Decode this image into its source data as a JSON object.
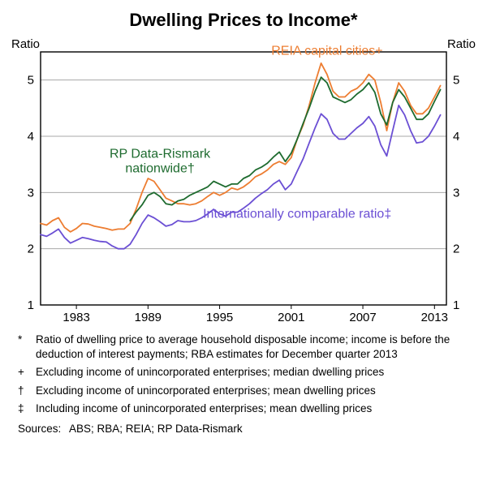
{
  "chart": {
    "type": "line",
    "title": "Dwelling Prices to Income*",
    "y_axis_label_left": "Ratio",
    "y_axis_label_right": "Ratio",
    "background_color": "#ffffff",
    "plot_bg": "#ffffff",
    "border_color": "#000000",
    "grid_color": "#a8a8a8",
    "title_fontsize": 22,
    "axis_fontsize": 15,
    "label_fontsize": 16,
    "xlim": [
      1980,
      2014
    ],
    "ylim": [
      1,
      5.5
    ],
    "yticks": [
      1,
      2,
      3,
      4,
      5
    ],
    "xticks": [
      1983,
      1989,
      1995,
      2001,
      2007,
      2013
    ],
    "line_width": 1.8,
    "series": [
      {
        "name": "REIA capital cities",
        "color": "#ed7d31",
        "label": "REIA capital cities",
        "label_symbol": "+",
        "label_x": 2004,
        "label_y": 5.45,
        "data": [
          [
            1980.0,
            2.45
          ],
          [
            1980.5,
            2.42
          ],
          [
            1981.0,
            2.5
          ],
          [
            1981.5,
            2.55
          ],
          [
            1982.0,
            2.38
          ],
          [
            1982.5,
            2.3
          ],
          [
            1983.0,
            2.36
          ],
          [
            1983.5,
            2.45
          ],
          [
            1984.0,
            2.44
          ],
          [
            1984.5,
            2.4
          ],
          [
            1985.0,
            2.38
          ],
          [
            1985.5,
            2.36
          ],
          [
            1986.0,
            2.33
          ],
          [
            1986.5,
            2.35
          ],
          [
            1987.0,
            2.35
          ],
          [
            1987.5,
            2.45
          ],
          [
            1988.0,
            2.7
          ],
          [
            1988.5,
            3.0
          ],
          [
            1989.0,
            3.25
          ],
          [
            1989.5,
            3.2
          ],
          [
            1990.0,
            3.05
          ],
          [
            1990.5,
            2.9
          ],
          [
            1991.0,
            2.85
          ],
          [
            1991.5,
            2.8
          ],
          [
            1992.0,
            2.8
          ],
          [
            1992.5,
            2.78
          ],
          [
            1993.0,
            2.8
          ],
          [
            1993.5,
            2.85
          ],
          [
            1994.0,
            2.93
          ],
          [
            1994.5,
            3.0
          ],
          [
            1995.0,
            2.95
          ],
          [
            1995.5,
            3.0
          ],
          [
            1996.0,
            3.08
          ],
          [
            1996.5,
            3.05
          ],
          [
            1997.0,
            3.1
          ],
          [
            1997.5,
            3.18
          ],
          [
            1998.0,
            3.28
          ],
          [
            1998.5,
            3.33
          ],
          [
            1999.0,
            3.4
          ],
          [
            1999.5,
            3.5
          ],
          [
            2000.0,
            3.55
          ],
          [
            2000.5,
            3.5
          ],
          [
            2001.0,
            3.62
          ],
          [
            2001.5,
            3.95
          ],
          [
            2002.0,
            4.2
          ],
          [
            2002.5,
            4.55
          ],
          [
            2003.0,
            4.95
          ],
          [
            2003.5,
            5.3
          ],
          [
            2004.0,
            5.1
          ],
          [
            2004.5,
            4.8
          ],
          [
            2005.0,
            4.7
          ],
          [
            2005.5,
            4.7
          ],
          [
            2006.0,
            4.8
          ],
          [
            2006.5,
            4.85
          ],
          [
            2007.0,
            4.95
          ],
          [
            2007.5,
            5.1
          ],
          [
            2008.0,
            5.0
          ],
          [
            2008.5,
            4.6
          ],
          [
            2009.0,
            4.1
          ],
          [
            2009.5,
            4.6
          ],
          [
            2010.0,
            4.95
          ],
          [
            2010.5,
            4.8
          ],
          [
            2011.0,
            4.55
          ],
          [
            2011.5,
            4.4
          ],
          [
            2012.0,
            4.4
          ],
          [
            2012.5,
            4.5
          ],
          [
            2013.0,
            4.7
          ],
          [
            2013.5,
            4.9
          ]
        ]
      },
      {
        "name": "RP Data-Rismark nationwide",
        "color": "#1e6b2f",
        "label": "RP Data-Rismark",
        "label_line2": "nationwide",
        "label_symbol": "†",
        "label_x": 1990,
        "label_y": 3.62,
        "data": [
          [
            1987.5,
            2.5
          ],
          [
            1988.0,
            2.65
          ],
          [
            1988.5,
            2.78
          ],
          [
            1989.0,
            2.95
          ],
          [
            1989.5,
            3.0
          ],
          [
            1990.0,
            2.93
          ],
          [
            1990.5,
            2.8
          ],
          [
            1991.0,
            2.78
          ],
          [
            1991.5,
            2.85
          ],
          [
            1992.0,
            2.88
          ],
          [
            1992.5,
            2.95
          ],
          [
            1993.0,
            3.0
          ],
          [
            1993.5,
            3.05
          ],
          [
            1994.0,
            3.1
          ],
          [
            1994.5,
            3.2
          ],
          [
            1995.0,
            3.15
          ],
          [
            1995.5,
            3.1
          ],
          [
            1996.0,
            3.15
          ],
          [
            1996.5,
            3.15
          ],
          [
            1997.0,
            3.25
          ],
          [
            1997.5,
            3.3
          ],
          [
            1998.0,
            3.4
          ],
          [
            1998.5,
            3.45
          ],
          [
            1999.0,
            3.52
          ],
          [
            1999.5,
            3.63
          ],
          [
            2000.0,
            3.72
          ],
          [
            2000.5,
            3.55
          ],
          [
            2001.0,
            3.7
          ],
          [
            2001.5,
            3.95
          ],
          [
            2002.0,
            4.23
          ],
          [
            2002.5,
            4.5
          ],
          [
            2003.0,
            4.8
          ],
          [
            2003.5,
            5.05
          ],
          [
            2004.0,
            4.95
          ],
          [
            2004.5,
            4.7
          ],
          [
            2005.0,
            4.65
          ],
          [
            2005.5,
            4.6
          ],
          [
            2006.0,
            4.65
          ],
          [
            2006.5,
            4.75
          ],
          [
            2007.0,
            4.83
          ],
          [
            2007.5,
            4.95
          ],
          [
            2008.0,
            4.78
          ],
          [
            2008.5,
            4.4
          ],
          [
            2009.0,
            4.2
          ],
          [
            2009.5,
            4.6
          ],
          [
            2010.0,
            4.83
          ],
          [
            2010.5,
            4.7
          ],
          [
            2011.0,
            4.5
          ],
          [
            2011.5,
            4.3
          ],
          [
            2012.0,
            4.3
          ],
          [
            2012.5,
            4.4
          ],
          [
            2013.0,
            4.62
          ],
          [
            2013.5,
            4.83
          ]
        ]
      },
      {
        "name": "Internationally comparable ratio",
        "color": "#6b4fd4",
        "label": "Internationally comparable ratio",
        "label_symbol": "‡",
        "label_x": 2001.5,
        "label_y": 2.55,
        "data": [
          [
            1980.0,
            2.25
          ],
          [
            1980.5,
            2.22
          ],
          [
            1981.0,
            2.28
          ],
          [
            1981.5,
            2.35
          ],
          [
            1982.0,
            2.2
          ],
          [
            1982.5,
            2.1
          ],
          [
            1983.0,
            2.15
          ],
          [
            1983.5,
            2.2
          ],
          [
            1984.0,
            2.18
          ],
          [
            1984.5,
            2.15
          ],
          [
            1985.0,
            2.13
          ],
          [
            1985.5,
            2.12
          ],
          [
            1986.0,
            2.05
          ],
          [
            1986.5,
            2.0
          ],
          [
            1987.0,
            2.0
          ],
          [
            1987.5,
            2.08
          ],
          [
            1988.0,
            2.25
          ],
          [
            1988.5,
            2.45
          ],
          [
            1989.0,
            2.6
          ],
          [
            1989.5,
            2.55
          ],
          [
            1990.0,
            2.48
          ],
          [
            1990.5,
            2.4
          ],
          [
            1991.0,
            2.43
          ],
          [
            1991.5,
            2.5
          ],
          [
            1992.0,
            2.48
          ],
          [
            1992.5,
            2.48
          ],
          [
            1993.0,
            2.5
          ],
          [
            1993.5,
            2.55
          ],
          [
            1994.0,
            2.62
          ],
          [
            1994.5,
            2.7
          ],
          [
            1995.0,
            2.62
          ],
          [
            1995.5,
            2.58
          ],
          [
            1996.0,
            2.65
          ],
          [
            1996.5,
            2.65
          ],
          [
            1997.0,
            2.72
          ],
          [
            1997.5,
            2.8
          ],
          [
            1998.0,
            2.9
          ],
          [
            1998.5,
            2.98
          ],
          [
            1999.0,
            3.05
          ],
          [
            1999.5,
            3.15
          ],
          [
            2000.0,
            3.22
          ],
          [
            2000.5,
            3.05
          ],
          [
            2001.0,
            3.15
          ],
          [
            2001.5,
            3.38
          ],
          [
            2002.0,
            3.6
          ],
          [
            2002.5,
            3.88
          ],
          [
            2003.0,
            4.15
          ],
          [
            2003.5,
            4.4
          ],
          [
            2004.0,
            4.3
          ],
          [
            2004.5,
            4.05
          ],
          [
            2005.0,
            3.95
          ],
          [
            2005.5,
            3.95
          ],
          [
            2006.0,
            4.05
          ],
          [
            2006.5,
            4.15
          ],
          [
            2007.0,
            4.23
          ],
          [
            2007.5,
            4.35
          ],
          [
            2008.0,
            4.18
          ],
          [
            2008.5,
            3.85
          ],
          [
            2009.0,
            3.65
          ],
          [
            2009.5,
            4.1
          ],
          [
            2010.0,
            4.55
          ],
          [
            2010.5,
            4.38
          ],
          [
            2011.0,
            4.1
          ],
          [
            2011.5,
            3.88
          ],
          [
            2012.0,
            3.9
          ],
          [
            2012.5,
            4.0
          ],
          [
            2013.0,
            4.18
          ],
          [
            2013.5,
            4.38
          ]
        ]
      }
    ]
  },
  "notes": [
    {
      "sym": "*",
      "text": "Ratio of dwelling price to average household disposable income; income is before the deduction of interest payments; RBA estimates for December quarter 2013"
    },
    {
      "sym": "+",
      "text": "Excluding income of unincorporated enterprises; median dwelling prices"
    },
    {
      "sym": "†",
      "text": "Excluding income of unincorporated enterprises; mean dwelling prices"
    },
    {
      "sym": "‡",
      "text": "Including income of unincorporated enterprises; mean dwelling prices"
    }
  ],
  "sources_label": "Sources:",
  "sources_text": "ABS; RBA; REIA; RP Data-Rismark"
}
